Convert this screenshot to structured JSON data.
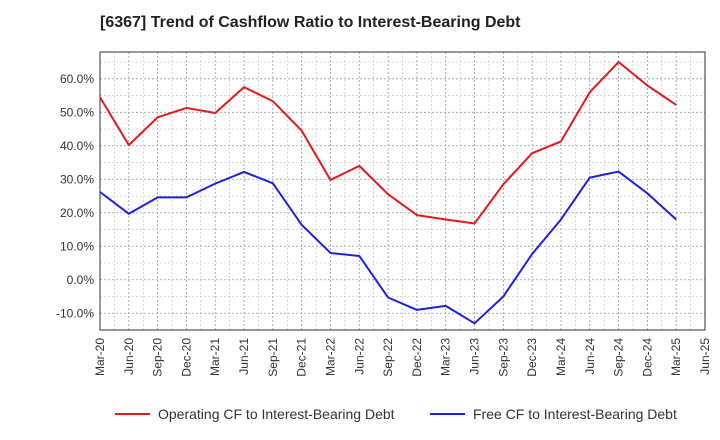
{
  "chart_data": {
    "type": "line",
    "title": "[6367]  Trend of Cashflow Ratio to Interest-Bearing Debt",
    "xlabel": "",
    "ylabel": "",
    "x_ticks": [
      "Mar-20",
      "Jun-20",
      "Sep-20",
      "Dec-20",
      "Mar-21",
      "Jun-21",
      "Sep-21",
      "Dec-21",
      "Mar-22",
      "Jun-22",
      "Sep-22",
      "Dec-22",
      "Mar-23",
      "Jun-23",
      "Sep-23",
      "Dec-23",
      "Mar-24",
      "Jun-24",
      "Sep-24",
      "Dec-24",
      "Mar-25",
      "Jun-25"
    ],
    "y_ticks": [
      "-10.0%",
      "0.0%",
      "10.0%",
      "20.0%",
      "30.0%",
      "40.0%",
      "50.0%",
      "60.0%"
    ],
    "ylim": [
      -15,
      68
    ],
    "grid": true,
    "legend_position": "bottom",
    "categories": [
      "Mar-20",
      "Jun-20",
      "Sep-20",
      "Dec-20",
      "Mar-21",
      "Jun-21",
      "Sep-21",
      "Dec-21",
      "Mar-22",
      "Jun-22",
      "Sep-22",
      "Dec-22",
      "Mar-23",
      "Jun-23",
      "Sep-23",
      "Dec-23",
      "Mar-24",
      "Jun-24",
      "Sep-24",
      "Dec-24",
      "Mar-25"
    ],
    "series": [
      {
        "name": "Operating CF to Interest-Bearing Debt",
        "color": "#e31a1c",
        "values": [
          54.5,
          40.2,
          48.5,
          51.3,
          49.8,
          57.5,
          53.3,
          44.5,
          29.8,
          34.0,
          25.5,
          19.3,
          18.0,
          16.8,
          28.5,
          37.8,
          41.3,
          56.0,
          65.0,
          58.0,
          52.2
        ]
      },
      {
        "name": "Free CF to Interest-Bearing Debt",
        "color": "#1f1fe0",
        "values": [
          26.2,
          19.7,
          24.6,
          24.6,
          28.7,
          32.2,
          28.8,
          16.4,
          8.0,
          7.1,
          -5.3,
          -9.0,
          -7.8,
          -13.0,
          -5.0,
          7.7,
          18.0,
          30.5,
          32.3,
          25.8,
          18.0
        ]
      }
    ]
  }
}
